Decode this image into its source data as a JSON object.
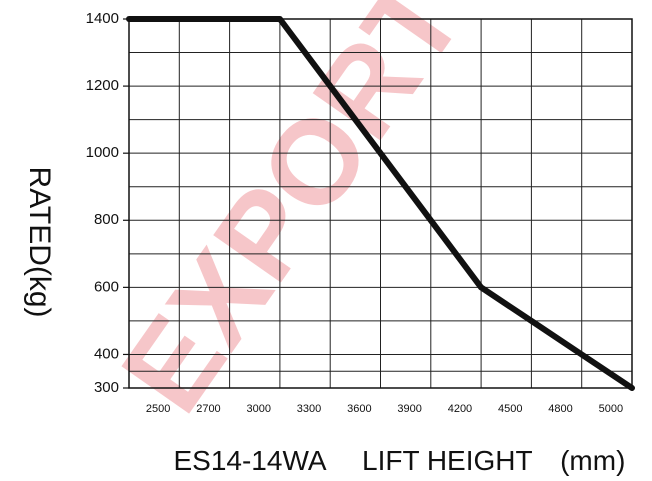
{
  "chart_data": {
    "type": "line",
    "x_tick_labels": [
      "2500",
      "2700",
      "3000",
      "3300",
      "3600",
      "3900",
      "4200",
      "4500",
      "4800",
      "5000"
    ],
    "y_tick_labels": [
      "1400",
      "1200",
      "1000",
      "800",
      "600",
      "400",
      "300"
    ],
    "y_ticks": [
      1400,
      1200,
      1000,
      800,
      600,
      400,
      300
    ],
    "series": [
      {
        "x": [
          "2500",
          "2700",
          "3000",
          "3300",
          "3600",
          "3900",
          "4200",
          "4500",
          "4800",
          "5000"
        ],
        "values": [
          1400,
          1400,
          1400,
          1200,
          1000,
          800,
          600,
          500,
          400,
          300
        ],
        "color": "#111111"
      }
    ],
    "ylabel": "RATED(kg)",
    "xlabel": "LIFT HEIGHT　(mm)",
    "model": "ES14-14WA",
    "ylim": [
      300,
      1400
    ],
    "grid": true,
    "legend": "none"
  },
  "watermark": {
    "text": "EXPORT",
    "color": "#f4b4b8"
  }
}
